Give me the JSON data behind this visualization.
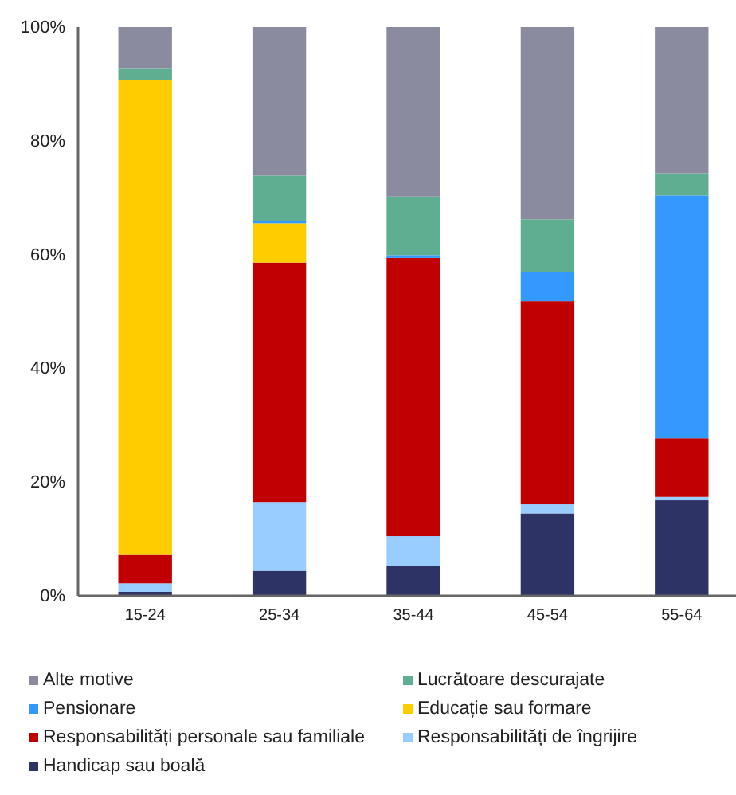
{
  "chart_data": {
    "type": "bar",
    "stacked": true,
    "grid": false,
    "legend": "bottom",
    "categories": [
      "15-24",
      "25-34",
      "35-44",
      "45-54",
      "55-64"
    ],
    "ylim": [
      0,
      100
    ],
    "yticks": [
      {
        "value": 0,
        "label": "0%"
      },
      {
        "value": 20,
        "label": "20%"
      },
      {
        "value": 40,
        "label": "40%"
      },
      {
        "value": 60,
        "label": "60%"
      },
      {
        "value": 80,
        "label": "80%"
      },
      {
        "value": 100,
        "label": "100%"
      }
    ],
    "series": [
      {
        "name": "Handicap sau boală",
        "color": "#2e3366",
        "values": [
          0.7,
          4.4,
          5.3,
          14.5,
          16.8
        ]
      },
      {
        "name": "Responsabilități de îngrijire",
        "color": "#99ccff",
        "values": [
          1.5,
          12.1,
          5.2,
          1.6,
          0.6
        ]
      },
      {
        "name": "Responsabilități personale sau familiale",
        "color": "#c00000",
        "values": [
          5.0,
          42.1,
          48.9,
          35.7,
          10.3
        ]
      },
      {
        "name": "Educație sau formare",
        "color": "#ffcc00",
        "values": [
          83.5,
          6.9,
          0,
          0,
          0
        ]
      },
      {
        "name": "Pensionare",
        "color": "#3399ff",
        "values": [
          0,
          0.4,
          0.5,
          5.1,
          42.7
        ]
      },
      {
        "name": "Lucrătoare descurajate",
        "color": "#5fae92",
        "values": [
          2.1,
          8.0,
          10.3,
          9.3,
          3.9
        ]
      },
      {
        "name": "Alte motive",
        "color": "#8b8ba0",
        "values": [
          7.2,
          26.1,
          29.8,
          33.8,
          25.7
        ]
      }
    ]
  }
}
